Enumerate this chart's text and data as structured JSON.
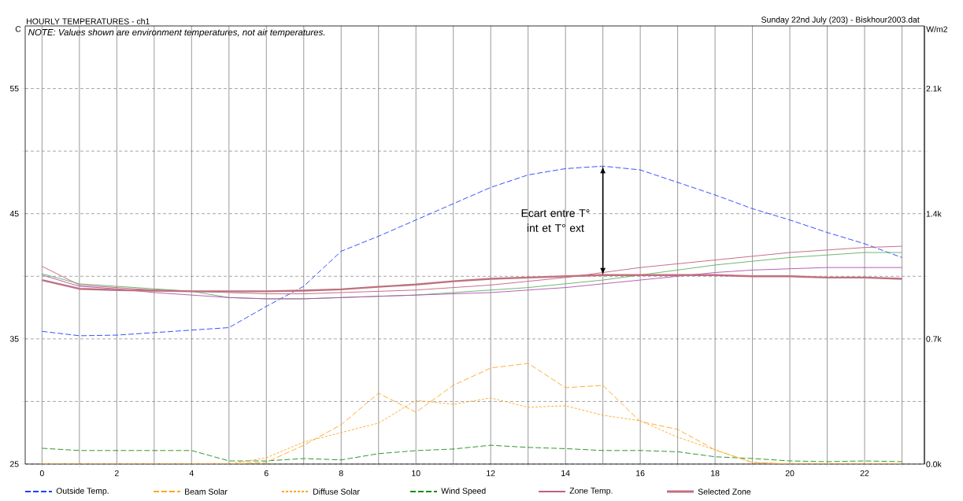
{
  "chart_data": {
    "type": "line",
    "title": "HOURLY TEMPERATURES - ch1",
    "subtitle": "Sunday 22nd July (203) - Biskhour2003.dat",
    "ylabel": "C",
    "y2label": "W/m2",
    "x": [
      0,
      1,
      2,
      3,
      4,
      5,
      6,
      7,
      8,
      9,
      10,
      11,
      12,
      13,
      14,
      15,
      16,
      17,
      18,
      19,
      20,
      21,
      22,
      23
    ],
    "xlim": [
      -0.45,
      23.6
    ],
    "xticks": [
      0,
      {
        "value": 1,
        "label": null
      },
      2,
      {
        "value": 3,
        "label": null
      },
      4,
      {
        "value": 5,
        "label": null
      },
      6,
      {
        "value": 7,
        "label": null
      },
      8,
      {
        "value": 9,
        "label": null
      },
      10,
      {
        "value": 11,
        "label": null
      },
      12,
      {
        "value": 13,
        "label": null
      },
      14,
      {
        "value": 15,
        "label": null
      },
      16,
      {
        "value": 17,
        "label": null
      },
      18,
      {
        "value": 19,
        "label": null
      },
      20,
      {
        "value": 21,
        "label": null
      },
      22,
      {
        "value": 23,
        "label": null
      }
    ],
    "ylim": [
      25,
      60
    ],
    "yticks": [
      25,
      {
        "value": 30,
        "label": null
      },
      35,
      {
        "value": 40,
        "label": null
      },
      45,
      {
        "value": 50,
        "label": null
      },
      55
    ],
    "y2lim": [
      0,
      2450
    ],
    "y2ticks": [
      {
        "value": 0,
        "label": "0.0k"
      },
      {
        "value": 350,
        "label": null
      },
      {
        "value": 700,
        "label": "0.7k"
      },
      {
        "value": 1050,
        "label": null
      },
      {
        "value": 1400,
        "label": "1.4k"
      },
      {
        "value": 1750,
        "label": null
      },
      {
        "value": 2100,
        "label": "2.1k"
      }
    ],
    "grid": true,
    "legend": "bottom",
    "series": [
      {
        "name": "Outside Temp.",
        "color": "#1f3fff",
        "line_style": "dashed",
        "values": [
          35.6,
          35.25,
          35.3,
          35.5,
          35.7,
          35.9,
          37.6,
          39.2,
          42.0,
          43.2,
          44.5,
          45.8,
          47.1,
          48.1,
          48.6,
          48.8,
          48.5,
          47.5,
          46.5,
          45.4,
          44.5,
          43.5,
          42.6,
          41.5
        ]
      },
      {
        "name": "Beam Solar",
        "color": "#ffa520",
        "line_style": "dashed",
        "axis": "y2",
        "values": [
          0,
          0,
          0,
          0,
          0,
          0,
          10,
          105,
          220,
          396,
          290,
          440,
          537,
          563,
          427,
          440,
          238,
          194,
          79,
          9,
          0,
          0,
          0,
          0
        ]
      },
      {
        "name": "Diffuse Solar",
        "color": "#ffa520",
        "line_style": "dotted",
        "axis": "y2",
        "values": [
          0,
          0,
          0,
          0,
          0,
          0,
          35,
          123,
          176,
          229,
          356,
          334,
          370,
          317,
          326,
          273,
          242,
          150,
          79,
          9,
          0,
          0,
          0,
          0
        ]
      },
      {
        "name": "Wind Speed",
        "color": "#1a8c1a",
        "line_style": "dashed",
        "values": [
          26.26,
          26.08,
          26.08,
          26.08,
          26.08,
          25.25,
          25.25,
          25.44,
          25.33,
          25.83,
          26.07,
          26.2,
          26.5,
          26.33,
          26.23,
          26.08,
          26.08,
          25.98,
          25.58,
          25.44,
          25.25,
          25.19,
          25.25,
          25.19
        ]
      },
      {
        "name": "Zone Temp.",
        "color": "#c0607a",
        "line_style": "solid",
        "values": [
          40.8,
          39.3,
          39.1,
          38.9,
          38.8,
          38.7,
          38.6,
          38.6,
          38.7,
          38.8,
          38.9,
          39.1,
          39.3,
          39.6,
          39.9,
          40.3,
          40.7,
          41.0,
          41.3,
          41.6,
          41.9,
          42.1,
          42.3,
          42.4
        ]
      },
      {
        "color": "#60b060",
        "line_style": "solid",
        "values": [
          40.2,
          39.4,
          39.2,
          39.0,
          38.8,
          38.3,
          38.2,
          38.2,
          38.3,
          38.4,
          38.5,
          38.7,
          38.9,
          39.1,
          39.4,
          39.7,
          40.1,
          40.5,
          40.9,
          41.2,
          41.5,
          41.7,
          41.9,
          41.9
        ]
      },
      {
        "color": "#b050b0",
        "line_style": "solid",
        "values": [
          40.1,
          39.2,
          39.0,
          38.7,
          38.5,
          38.3,
          38.2,
          38.2,
          38.3,
          38.4,
          38.5,
          38.6,
          38.7,
          38.9,
          39.1,
          39.4,
          39.7,
          40.0,
          40.3,
          40.5,
          40.6,
          40.7,
          40.7,
          40.7
        ]
      },
      {
        "name": "Selected Zone",
        "color": "#c0707f",
        "line_style": "solid",
        "values": [
          39.7,
          39.0,
          38.9,
          38.86,
          38.8,
          38.8,
          38.8,
          38.86,
          38.96,
          39.16,
          39.34,
          39.6,
          39.8,
          39.9,
          40.0,
          40.1,
          40.1,
          40.1,
          40.1,
          40.0,
          40.0,
          39.9,
          39.9,
          39.8
        ]
      }
    ],
    "annotations": [
      "NOTE: Values shown are environment temperatures, not air temperatures.",
      "Ecart entre T° int et T° ext"
    ]
  }
}
